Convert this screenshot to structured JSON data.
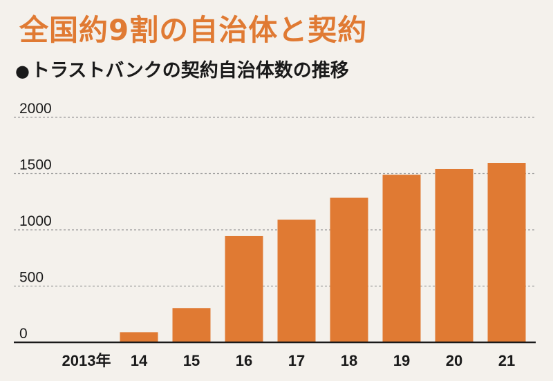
{
  "headline": "全国約9割の自治体と契約",
  "subtitle": "トラストバンクの契約自治体数の推移",
  "chart_data": {
    "type": "bar",
    "title": "トラストバンクの契約自治体数の推移",
    "categories": [
      "2013年",
      "14",
      "15",
      "16",
      "17",
      "18",
      "19",
      "20",
      "21"
    ],
    "values": [
      0,
      90,
      305,
      945,
      1090,
      1285,
      1490,
      1540,
      1595
    ],
    "y_ticks": [
      "0",
      "500",
      "1000",
      "1500",
      "2000"
    ],
    "ylim": [
      0,
      2000
    ],
    "grid": "dashed-horizontal",
    "bar_color": "#e07a33"
  }
}
